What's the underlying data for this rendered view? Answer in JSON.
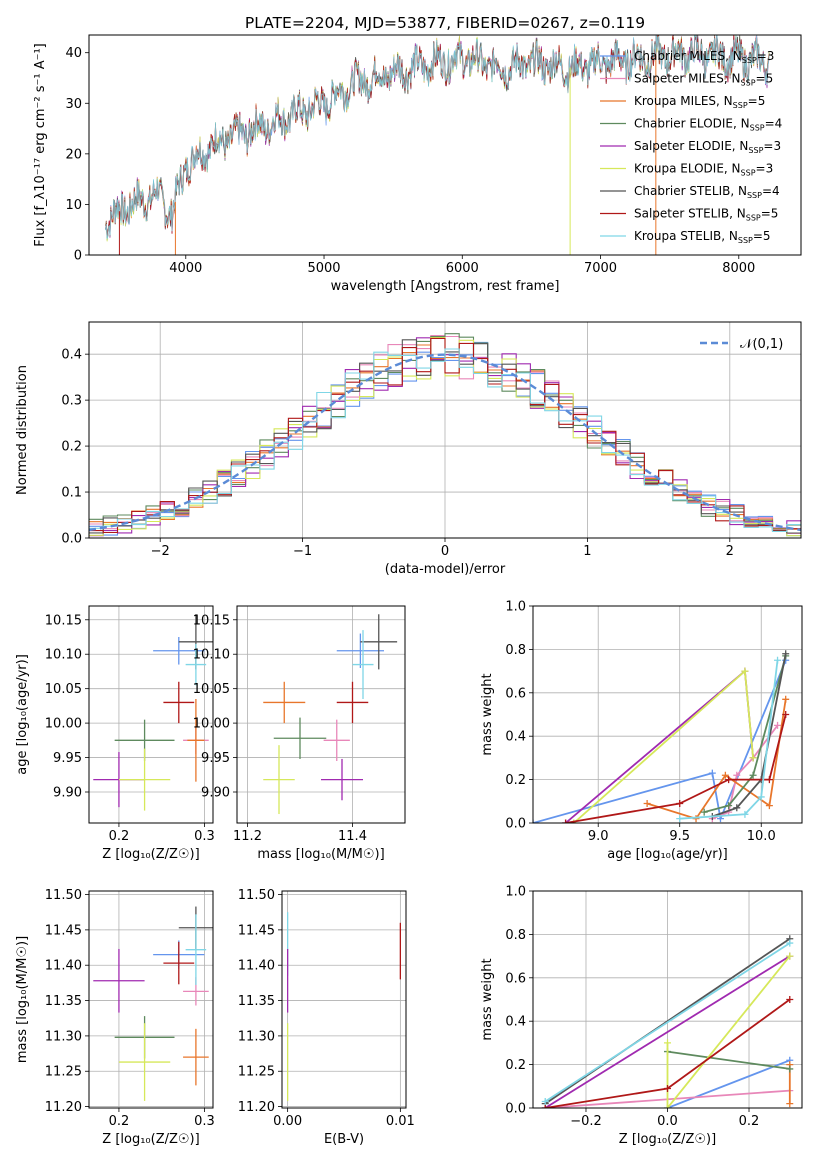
{
  "title": "PLATE=2204, MJD=53877, FIBERID=0267, z=0.119",
  "colors": {
    "Chabrier MILES": "#6495ed",
    "Salpeter MILES": "#e887b9",
    "Kroupa MILES": "#e8762b",
    "Chabrier ELODIE": "#5e8a5e",
    "Salpeter ELODIE": "#a02ab0",
    "Kroupa ELODIE": "#d6e85a",
    "Chabrier STELIB": "#555555",
    "Salpeter STELIB": "#b01818",
    "Kroupa STELIB": "#7fd6e6"
  },
  "chart_data": [
    {
      "type": "line",
      "xlabel": "wavelength [Angstrom, rest frame]",
      "ylabel": "Flux [f_λ10⁻¹⁷ erg cm⁻² s⁻¹ A⁻¹]",
      "xlim": [
        3300,
        8450
      ],
      "ylim": [
        0,
        43.5
      ],
      "xticks": [
        "4000",
        "5000",
        "6000",
        "7000",
        "8000"
      ],
      "yticks": [
        "0",
        "10",
        "20",
        "30",
        "40"
      ],
      "grid": false,
      "legend_position": "top-right",
      "spectrum_range": [
        3420,
        8220
      ],
      "spectrum_anchors": [
        [
          3420,
          7
        ],
        [
          3600,
          10
        ],
        [
          3800,
          12
        ],
        [
          3900,
          8
        ],
        [
          4000,
          18
        ],
        [
          4200,
          22
        ],
        [
          4500,
          25
        ],
        [
          5000,
          30
        ],
        [
          5200,
          34
        ],
        [
          5500,
          36
        ],
        [
          5800,
          38
        ],
        [
          6000,
          39
        ],
        [
          6300,
          37
        ],
        [
          6500,
          38
        ],
        [
          6800,
          37
        ],
        [
          7000,
          38
        ],
        [
          7300,
          39
        ],
        [
          7600,
          40
        ],
        [
          8000,
          39
        ],
        [
          8220,
          38
        ]
      ],
      "legend": [
        {
          "series": "Chabrier MILES",
          "nssp": "3"
        },
        {
          "series": "Salpeter MILES",
          "nssp": "5"
        },
        {
          "series": "Kroupa MILES",
          "nssp": "5"
        },
        {
          "series": "Chabrier ELODIE",
          "nssp": "4"
        },
        {
          "series": "Salpeter ELODIE",
          "nssp": "3"
        },
        {
          "series": "Kroupa ELODIE",
          "nssp": "3"
        },
        {
          "series": "Chabrier STELIB",
          "nssp": "4"
        },
        {
          "series": "Salpeter STELIB",
          "nssp": "5"
        },
        {
          "series": "Kroupa STELIB",
          "nssp": "5"
        }
      ]
    },
    {
      "type": "histogram",
      "xlabel": "(data-model)/error",
      "ylabel": "Normed distribution",
      "xlim": [
        -2.5,
        2.5
      ],
      "ylim": [
        0,
        0.47
      ],
      "xticks": [
        "−2",
        "−1",
        "0",
        "1",
        "2"
      ],
      "yticks": [
        "0.0",
        "0.1",
        "0.2",
        "0.3",
        "0.4"
      ],
      "grid": true,
      "legend_position": "top-right",
      "reference_label": "𝒩(0,1)",
      "reference": "gaussian mean 0, sigma 1"
    },
    {
      "type": "scatter",
      "xlabel": "Z [log₁₀(Z/Z☉)]",
      "ylabel": "age  [log₁₀(age/yr)]",
      "xlim": [
        0.165,
        0.31
      ],
      "ylim": [
        9.855,
        10.17
      ],
      "xticks": [
        "0.2",
        "0.3"
      ],
      "yticks": [
        "9.90",
        "9.95",
        "10.00",
        "10.05",
        "10.10",
        "10.15"
      ],
      "grid": true,
      "points": [
        {
          "series": "Chabrier MILES",
          "x": 0.27,
          "y": 10.105,
          "xerr": 0.03,
          "yerr": 0.02
        },
        {
          "series": "Salpeter MILES",
          "x": 0.29,
          "y": 9.975,
          "xerr": 0.015,
          "yerr": 0.02
        },
        {
          "series": "Kroupa MILES",
          "x": 0.29,
          "y": 9.975,
          "xerr": 0.01,
          "yerr": 0.06
        },
        {
          "series": "Chabrier ELODIE",
          "x": 0.23,
          "y": 9.975,
          "xerr": 0.035,
          "yerr": 0.03
        },
        {
          "series": "Salpeter ELODIE",
          "x": 0.2,
          "y": 9.918,
          "xerr": 0.03,
          "yerr": 0.04
        },
        {
          "series": "Kroupa ELODIE",
          "x": 0.23,
          "y": 9.918,
          "xerr": 0.03,
          "yerr": 0.045
        },
        {
          "series": "Chabrier STELIB",
          "x": 0.29,
          "y": 10.118,
          "xerr": 0.02,
          "yerr": 0.04
        },
        {
          "series": "Salpeter STELIB",
          "x": 0.27,
          "y": 10.03,
          "xerr": 0.018,
          "yerr": 0.03
        },
        {
          "series": "Kroupa STELIB",
          "x": 0.29,
          "y": 10.085,
          "xerr": 0.012,
          "yerr": 0.03
        }
      ]
    },
    {
      "type": "scatter",
      "xlabel": "mass [log₁₀(M/M☉)]",
      "ylabel": "",
      "xlim": [
        11.18,
        11.5
      ],
      "ylim": [
        9.855,
        10.17
      ],
      "xticks": [
        "11.2",
        "11.4"
      ],
      "yticks": [
        "9.90",
        "9.95",
        "10.00",
        "10.05",
        "10.10",
        "10.15"
      ],
      "grid": true,
      "points": [
        {
          "series": "Chabrier MILES",
          "x": 11.415,
          "y": 10.105,
          "xerr": 0.045,
          "yerr": 0.025
        },
        {
          "series": "Salpeter MILES",
          "x": 11.37,
          "y": 9.975,
          "xerr": 0.025,
          "yerr": 0.03
        },
        {
          "series": "Kroupa MILES",
          "x": 11.27,
          "y": 10.03,
          "xerr": 0.04,
          "yerr": 0.03
        },
        {
          "series": "Chabrier ELODIE",
          "x": 11.3,
          "y": 9.978,
          "xerr": 0.05,
          "yerr": 0.03
        },
        {
          "series": "Salpeter ELODIE",
          "x": 11.38,
          "y": 9.918,
          "xerr": 0.04,
          "yerr": 0.03
        },
        {
          "series": "Kroupa ELODIE",
          "x": 11.26,
          "y": 9.918,
          "xerr": 0.03,
          "yerr": 0.05
        },
        {
          "series": "Chabrier STELIB",
          "x": 11.45,
          "y": 10.118,
          "xerr": 0.035,
          "yerr": 0.04
        },
        {
          "series": "Salpeter STELIB",
          "x": 11.4,
          "y": 10.03,
          "xerr": 0.03,
          "yerr": 0.03
        },
        {
          "series": "Kroupa STELIB",
          "x": 11.42,
          "y": 10.085,
          "xerr": 0.02,
          "yerr": 0.05
        }
      ]
    },
    {
      "type": "line",
      "xlabel": "age  [log₁₀(age/yr)]",
      "ylabel": "mass weight",
      "xlim": [
        8.6,
        10.25
      ],
      "ylim": [
        0,
        1.0
      ],
      "xticks": [
        "9.0",
        "9.5",
        "10.0"
      ],
      "yticks": [
        "0.0",
        "0.2",
        "0.4",
        "0.6",
        "0.8",
        "1.0"
      ],
      "grid": true,
      "series": [
        {
          "name": "Chabrier MILES",
          "x": [
            8.6,
            9.7,
            9.75,
            10.15
          ],
          "y": [
            0.0,
            0.23,
            0.02,
            0.75
          ]
        },
        {
          "name": "Salpeter MILES",
          "x": [
            9.7,
            9.8,
            9.85,
            9.95,
            10.1
          ],
          "y": [
            0.02,
            0.05,
            0.22,
            0.3,
            0.45
          ]
        },
        {
          "name": "Kroupa MILES",
          "x": [
            9.3,
            9.6,
            9.78,
            10.05,
            10.15
          ],
          "y": [
            0.09,
            0.02,
            0.22,
            0.08,
            0.57
          ]
        },
        {
          "name": "Chabrier ELODIE",
          "x": [
            9.65,
            9.8,
            9.95,
            10.15
          ],
          "y": [
            0.05,
            0.08,
            0.22,
            0.77
          ]
        },
        {
          "name": "Salpeter ELODIE",
          "x": [
            8.8,
            9.9,
            9.95
          ],
          "y": [
            0.0,
            0.7,
            0.3
          ]
        },
        {
          "name": "Kroupa ELODIE",
          "x": [
            8.85,
            9.9,
            9.95
          ],
          "y": [
            0.0,
            0.7,
            0.3
          ]
        },
        {
          "name": "Chabrier STELIB",
          "x": [
            9.7,
            9.85,
            10.0,
            10.15
          ],
          "y": [
            0.03,
            0.07,
            0.2,
            0.78
          ]
        },
        {
          "name": "Salpeter STELIB",
          "x": [
            8.8,
            9.5,
            9.8,
            10.05,
            10.15
          ],
          "y": [
            0.0,
            0.09,
            0.2,
            0.2,
            0.5
          ]
        },
        {
          "name": "Kroupa STELIB",
          "x": [
            9.5,
            9.9,
            10.0,
            10.1
          ],
          "y": [
            0.02,
            0.04,
            0.12,
            0.75
          ]
        }
      ]
    },
    {
      "type": "scatter",
      "xlabel": "Z [log₁₀(Z/Z☉)]",
      "ylabel": "mass [log₁₀(M/M☉)]",
      "xlim": [
        0.165,
        0.31
      ],
      "ylim": [
        11.198,
        11.505
      ],
      "xticks": [
        "0.2",
        "0.3"
      ],
      "yticks": [
        "11.20",
        "11.25",
        "11.30",
        "11.35",
        "11.40",
        "11.45",
        "11.50"
      ],
      "grid": true,
      "points": [
        {
          "series": "Chabrier MILES",
          "x": 0.27,
          "y": 11.415,
          "xerr": 0.03,
          "yerr": 0.02
        },
        {
          "series": "Salpeter MILES",
          "x": 0.29,
          "y": 11.363,
          "xerr": 0.015,
          "yerr": 0.02
        },
        {
          "series": "Kroupa MILES",
          "x": 0.29,
          "y": 11.27,
          "xerr": 0.015,
          "yerr": 0.04
        },
        {
          "series": "Chabrier ELODIE",
          "x": 0.23,
          "y": 11.298,
          "xerr": 0.035,
          "yerr": 0.03
        },
        {
          "series": "Salpeter ELODIE",
          "x": 0.2,
          "y": 11.378,
          "xerr": 0.03,
          "yerr": 0.045
        },
        {
          "series": "Kroupa ELODIE",
          "x": 0.23,
          "y": 11.263,
          "xerr": 0.03,
          "yerr": 0.055
        },
        {
          "series": "Chabrier STELIB",
          "x": 0.29,
          "y": 11.453,
          "xerr": 0.02,
          "yerr": 0.03
        },
        {
          "series": "Salpeter STELIB",
          "x": 0.27,
          "y": 11.403,
          "xerr": 0.018,
          "yerr": 0.03
        },
        {
          "series": "Kroupa STELIB",
          "x": 0.29,
          "y": 11.422,
          "xerr": 0.012,
          "yerr": 0.05
        }
      ]
    },
    {
      "type": "scatter",
      "xlabel": "E(B-V)",
      "ylabel": "",
      "xlim": [
        -0.0005,
        0.0105
      ],
      "ylim": [
        11.198,
        11.505
      ],
      "xticks": [
        "0.00",
        "0.01"
      ],
      "yticks": [
        "11.20",
        "11.25",
        "11.30",
        "11.35",
        "11.40",
        "11.45",
        "11.50"
      ],
      "grid": true,
      "points": [
        {
          "series": "Kroupa STELIB",
          "x": 0.0,
          "y": 11.43,
          "xerr": 0,
          "yerr": 0.045
        },
        {
          "series": "Salpeter ELODIE",
          "x": 0.0,
          "y": 11.378,
          "xerr": 0,
          "yerr": 0.045
        },
        {
          "series": "Kroupa ELODIE",
          "x": 0.0,
          "y": 11.263,
          "xerr": 0,
          "yerr": 0.055
        },
        {
          "series": "Salpeter STELIB",
          "x": 0.01,
          "y": 11.42,
          "xerr": 0,
          "yerr": 0.04
        }
      ]
    },
    {
      "type": "line",
      "xlabel": "Z [log₁₀(Z/Z☉)]",
      "ylabel": "mass weight",
      "xlim": [
        -0.33,
        0.33
      ],
      "ylim": [
        0,
        1.0
      ],
      "xticks": [
        "−0.2",
        "0.0",
        "0.2"
      ],
      "yticks": [
        "0.0",
        "0.2",
        "0.4",
        "0.6",
        "0.8",
        "1.0"
      ],
      "grid": true,
      "series": [
        {
          "name": "Chabrier MILES",
          "x": [
            0.0,
            0.3
          ],
          "y": [
            0.0,
            0.22
          ]
        },
        {
          "name": "Salpeter MILES",
          "x": [
            -0.3,
            0.3
          ],
          "y": [
            0.0,
            0.08
          ]
        },
        {
          "name": "Kroupa MILES",
          "x": [
            0.3,
            0.3
          ],
          "y": [
            0.02,
            0.2
          ]
        },
        {
          "name": "Chabrier ELODIE",
          "x": [
            0.0,
            0.3
          ],
          "y": [
            0.26,
            0.18
          ]
        },
        {
          "name": "Salpeter ELODIE",
          "x": [
            -0.3,
            0.3
          ],
          "y": [
            0.0,
            0.7
          ]
        },
        {
          "name": "Kroupa ELODIE",
          "x": [
            0.0,
            0.0,
            0.3
          ],
          "y": [
            0.3,
            0.0,
            0.7
          ]
        },
        {
          "name": "Chabrier STELIB",
          "x": [
            -0.3,
            0.3
          ],
          "y": [
            0.02,
            0.78
          ]
        },
        {
          "name": "Salpeter STELIB",
          "x": [
            -0.3,
            0.0,
            0.3
          ],
          "y": [
            0.0,
            0.09,
            0.5
          ]
        },
        {
          "name": "Kroupa STELIB",
          "x": [
            -0.3,
            0.3
          ],
          "y": [
            0.03,
            0.76
          ]
        }
      ]
    }
  ]
}
